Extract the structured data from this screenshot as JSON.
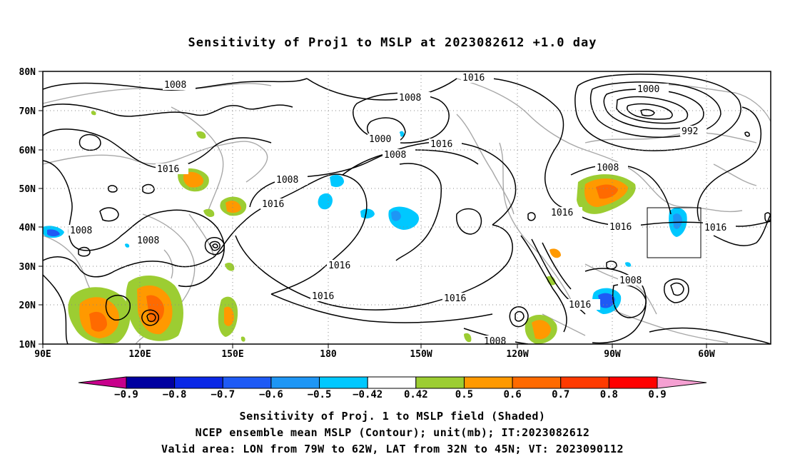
{
  "title": "Sensitivity of Proj1 to MSLP at 2023082612 +1.0 day",
  "lat_ticks": [
    "80N",
    "70N",
    "60N",
    "50N",
    "40N",
    "30N",
    "20N",
    "10N"
  ],
  "lon_ticks": [
    "90E",
    "120E",
    "150E",
    "180",
    "150W",
    "120W",
    "90W",
    "60W"
  ],
  "contour_labels": [
    "1008",
    "1016",
    "1008",
    "1000",
    "1008",
    "1016",
    "1000",
    "992",
    "1016",
    "1008",
    "1016",
    "1008",
    "1016",
    "1008",
    "1016",
    "1016",
    "1016",
    "1016",
    "1016",
    "1008",
    "1008",
    "1016",
    "1008"
  ],
  "colorbar": {
    "labels": [
      "-0.9",
      "-0.8",
      "-0.7",
      "-0.6",
      "-0.5",
      "-0.42",
      "0.42",
      "0.5",
      "0.6",
      "0.7",
      "0.8",
      "0.9"
    ],
    "colors": [
      "#0000a0",
      "#0a28e6",
      "#1e5af5",
      "#1e96f5",
      "#00c8ff",
      "#ffffff",
      "#9ccd32",
      "#ff9900",
      "#ff6a00",
      "#ff3a00",
      "#ff0000"
    ],
    "low_end_color": "#c8008c",
    "high_end_color": "#f5a0d2"
  },
  "colors": {
    "contour": "#000000",
    "coast": "#a8a8a8",
    "grid": "#888888"
  },
  "captions": [
    "Sensitivity of Proj. 1 to MSLP field (Shaded)",
    "NCEP ensemble mean MSLP (Contour); unit(mb); IT:2023082612",
    "Valid area: LON from 79W to 62W, LAT from 32N to 45N; VT: 2023090112"
  ]
}
